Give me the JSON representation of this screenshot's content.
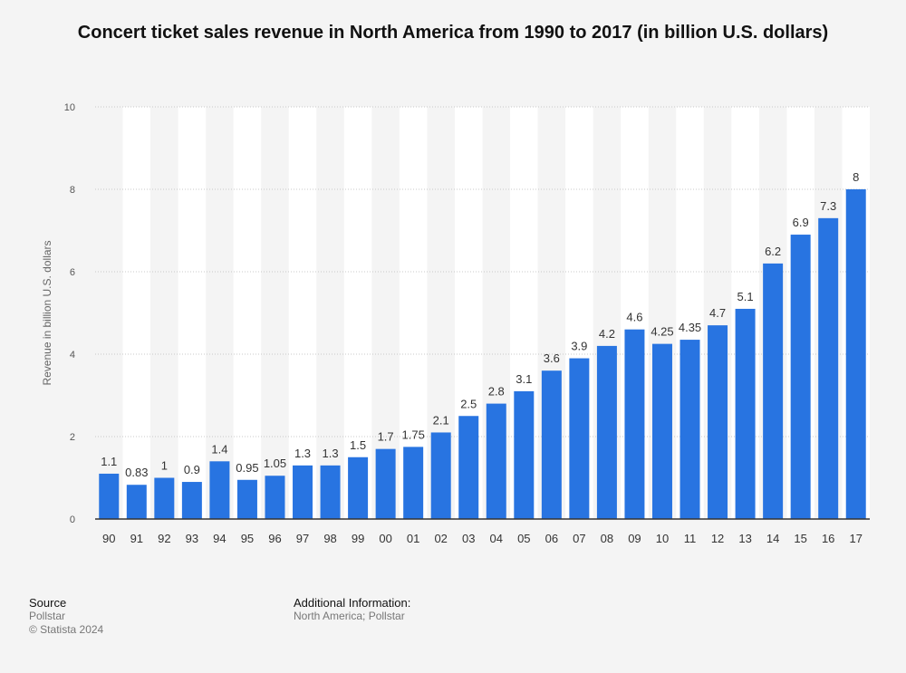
{
  "chart_data": {
    "type": "bar",
    "title": "Concert ticket sales revenue in North America from 1990 to 2017 (in billion U.S. dollars)",
    "xlabel": "",
    "ylabel": "Revenue in billion U.S. dollars",
    "ylim": [
      0,
      10
    ],
    "yticks": [
      "0",
      "2",
      "4",
      "6",
      "8",
      "10"
    ],
    "grid": true,
    "bar_color": "#2874e1",
    "categories": [
      "90",
      "91",
      "92",
      "93",
      "94",
      "95",
      "96",
      "97",
      "98",
      "99",
      "00",
      "01",
      "02",
      "03",
      "04",
      "05",
      "06",
      "07",
      "08",
      "09",
      "10",
      "11",
      "12",
      "13",
      "14",
      "15",
      "16",
      "17"
    ],
    "values": [
      1.1,
      0.83,
      1,
      0.9,
      1.4,
      0.95,
      1.05,
      1.3,
      1.3,
      1.5,
      1.7,
      1.75,
      2.1,
      2.5,
      2.8,
      3.1,
      3.6,
      3.9,
      4.2,
      4.6,
      4.25,
      4.35,
      4.7,
      5.1,
      6.2,
      6.9,
      7.3,
      8
    ],
    "labels": [
      "1.1",
      "0.83",
      "1",
      "0.9",
      "1.4",
      "0.95",
      "1.05",
      "1.3",
      "1.3",
      "1.5",
      "1.7",
      "1.75",
      "2.1",
      "2.5",
      "2.8",
      "3.1",
      "3.6",
      "3.9",
      "4.2",
      "4.6",
      "4.25",
      "4.35",
      "4.7",
      "5.1",
      "6.2",
      "6.9",
      "7.3",
      "8"
    ]
  },
  "footer": {
    "source_heading": "Source",
    "source_name": "Pollstar",
    "copyright": "© Statista 2024",
    "info_heading": "Additional Information:",
    "info_text": "North America; Pollstar"
  }
}
